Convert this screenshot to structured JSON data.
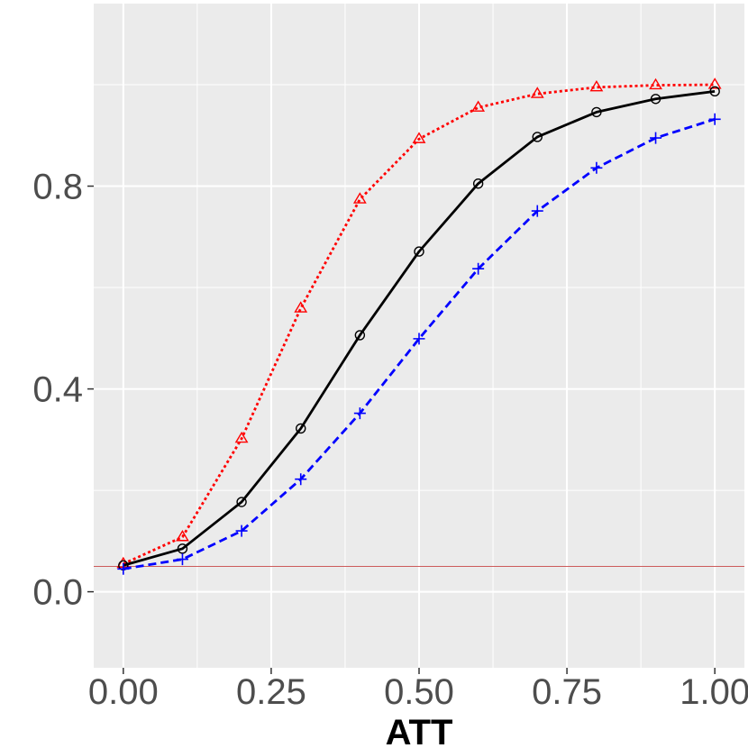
{
  "chart_data": {
    "type": "line",
    "title": "",
    "xlabel": "ATT",
    "ylabel": "",
    "xlim": [
      -0.05,
      1.05
    ],
    "ylim": [
      -0.15,
      1.16
    ],
    "x_ticks": [
      0.0,
      0.25,
      0.5,
      0.75,
      1.0
    ],
    "x_tick_labels": [
      "0.00",
      "0.25",
      "0.50",
      "0.75",
      "1.00"
    ],
    "y_ticks": [
      0.0,
      0.4,
      0.8
    ],
    "y_tick_labels": [
      "0.0",
      "0.4",
      "0.8"
    ],
    "grid": true,
    "background": "#ebebeb",
    "reference_line": {
      "y": 0.05,
      "color": "#cd5c5c"
    },
    "x": [
      0.0,
      0.1,
      0.2,
      0.3,
      0.4,
      0.5,
      0.6,
      0.7,
      0.8,
      0.9,
      1.0
    ],
    "series": [
      {
        "values": [
          0.055,
          0.108,
          0.302,
          0.559,
          0.774,
          0.893,
          0.955,
          0.982,
          0.995,
          0.999,
          1.0
        ],
        "color": "#ff0000",
        "line_style": "dotted",
        "marker": "triangle"
      },
      {
        "values": [
          0.052,
          0.085,
          0.177,
          0.322,
          0.506,
          0.671,
          0.805,
          0.897,
          0.946,
          0.972,
          0.987
        ],
        "color": "#000000",
        "line_style": "solid",
        "marker": "circle"
      },
      {
        "values": [
          0.045,
          0.064,
          0.12,
          0.222,
          0.352,
          0.499,
          0.637,
          0.751,
          0.836,
          0.895,
          0.932
        ],
        "color": "#0000ff",
        "line_style": "dashed",
        "marker": "plus"
      }
    ]
  }
}
